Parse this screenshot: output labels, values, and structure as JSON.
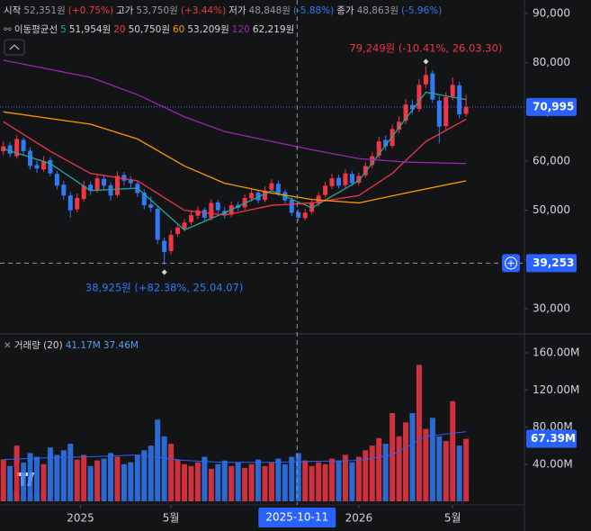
{
  "chart_data": {
    "type": "candlestick",
    "header": {
      "ohlc": [
        {
          "label": "시작",
          "value": "52,351원",
          "change": "(+0.75%)"
        },
        {
          "label": "고가",
          "value": "53,750원",
          "change": "(+3.44%)"
        },
        {
          "label": "저가",
          "value": "48,848원",
          "change": "(-5.88%)"
        },
        {
          "label": "종가",
          "value": "48,863원",
          "change": "(-5.96%)"
        }
      ],
      "ma_title": "이동평균선",
      "ma_items": [
        {
          "period": "5",
          "value": "51,954원",
          "color": "#26a69a"
        },
        {
          "period": "20",
          "value": "50,750원",
          "color": "#f23645"
        },
        {
          "period": "60",
          "value": "53,209원",
          "color": "#ff9800"
        },
        {
          "period": "120",
          "value": "62,219원",
          "color": "#9c27b0"
        }
      ],
      "volume_title": "거래량 (20)",
      "volume_values": [
        "41.17M",
        "37.46M"
      ]
    },
    "up_color": "#f23645",
    "down_color": "#3179f5",
    "open": [
      62000,
      63200,
      61000,
      64300,
      62100,
      59200,
      58300,
      60200,
      57400,
      55200,
      53000,
      50200,
      52300,
      55200,
      54100,
      56400,
      55100,
      53100,
      57200,
      56200,
      55400,
      53600,
      51200,
      50300,
      43800,
      41700,
      45200,
      46300,
      47600,
      48900,
      50100,
      48400,
      51600,
      49900,
      49100,
      51100,
      50600,
      52400,
      53600,
      52100,
      54200,
      55400,
      53700,
      52100,
      49600,
      48400,
      49700,
      51400,
      53100,
      54900,
      56600,
      55100,
      57400,
      55600,
      57100,
      59200,
      61100,
      64300,
      63100,
      66400,
      68200,
      71400,
      70600,
      75600,
      77800,
      72300,
      67100,
      73100,
      75400,
      69600
    ],
    "high": [
      64000,
      63900,
      65300,
      64800,
      62800,
      60100,
      61000,
      60800,
      58000,
      56000,
      53700,
      53400,
      56000,
      55900,
      57300,
      57100,
      55700,
      57900,
      57800,
      56900,
      56000,
      54300,
      52800,
      51000,
      44500,
      46000,
      47300,
      48300,
      49800,
      50800,
      50600,
      52300,
      52100,
      50600,
      51800,
      51800,
      53200,
      54300,
      54100,
      54900,
      56300,
      56000,
      54200,
      52700,
      50200,
      50300,
      52100,
      53700,
      55800,
      57400,
      57200,
      58300,
      58000,
      57700,
      59800,
      61900,
      64900,
      65200,
      67400,
      69100,
      72600,
      72400,
      76600,
      79249,
      78500,
      73200,
      74000,
      77000,
      76100,
      73500
    ],
    "low": [
      61200,
      60800,
      60500,
      61200,
      58300,
      57600,
      57800,
      56900,
      54200,
      52100,
      48500,
      49600,
      51800,
      53100,
      53600,
      54200,
      52000,
      52600,
      55100,
      54600,
      52700,
      50200,
      49600,
      43100,
      38925,
      41000,
      44600,
      45700,
      47000,
      48200,
      47800,
      47900,
      49300,
      48300,
      48600,
      49900,
      50100,
      51800,
      51400,
      51600,
      53700,
      52900,
      51400,
      48900,
      47800,
      47900,
      49200,
      50800,
      52600,
      54300,
      54400,
      54600,
      54900,
      55000,
      56600,
      58600,
      60500,
      62100,
      62600,
      65700,
      67500,
      69600,
      70000,
      74800,
      71800,
      63600,
      66400,
      72400,
      68600,
      69000
    ],
    "close": [
      63000,
      61500,
      64500,
      62000,
      59000,
      58500,
      60000,
      57500,
      55000,
      53000,
      50000,
      52500,
      55000,
      54000,
      56500,
      55000,
      53000,
      57000,
      56000,
      55500,
      53500,
      51000,
      50500,
      44000,
      41500,
      45000,
      46500,
      47500,
      49000,
      50000,
      48500,
      51500,
      50000,
      49000,
      51000,
      50500,
      52500,
      53500,
      52000,
      54000,
      55500,
      53500,
      52000,
      49500,
      48500,
      49500,
      51500,
      53000,
      55000,
      56500,
      55000,
      57500,
      55500,
      57000,
      59000,
      61000,
      64000,
      63000,
      66500,
      68000,
      71500,
      70500,
      75500,
      77500,
      72500,
      67000,
      73000,
      75500,
      69500,
      70995
    ],
    "volume": [
      45000000,
      38000000,
      60000000,
      42000000,
      52000000,
      48000000,
      40000000,
      58000000,
      50000000,
      55000000,
      62000000,
      45000000,
      50000000,
      38000000,
      44000000,
      46000000,
      52000000,
      48000000,
      40000000,
      42000000,
      50000000,
      55000000,
      60000000,
      88000000,
      70000000,
      62000000,
      45000000,
      40000000,
      38000000,
      42000000,
      48000000,
      35000000,
      40000000,
      44000000,
      38000000,
      42000000,
      36000000,
      40000000,
      45000000,
      38000000,
      42000000,
      46000000,
      40000000,
      48000000,
      52000000,
      44000000,
      38000000,
      42000000,
      40000000,
      46000000,
      44000000,
      50000000,
      42000000,
      48000000,
      55000000,
      60000000,
      68000000,
      62000000,
      95000000,
      70000000,
      85000000,
      95000000,
      147000000,
      78000000,
      90000000,
      70000000,
      65000000,
      108000000,
      60000000,
      67390000
    ],
    "ma": [
      {
        "color": "#26a69a",
        "x": [
          0,
          7,
          13,
          20,
          27,
          33,
          40,
          46,
          53,
          58,
          63,
          69
        ],
        "values": [
          62500,
          59500,
          54000,
          54500,
          46000,
          49500,
          54000,
          50500,
          56000,
          65000,
          74000,
          72500
        ]
      },
      {
        "color": "#f23645",
        "x": [
          0,
          7,
          13,
          20,
          27,
          33,
          40,
          46,
          53,
          58,
          63,
          69
        ],
        "values": [
          68000,
          62000,
          57500,
          56000,
          50000,
          49000,
          51000,
          51500,
          53000,
          57500,
          64000,
          68500
        ]
      },
      {
        "color": "#ff9800",
        "x": [
          0,
          13,
          20,
          27,
          33,
          40,
          46,
          53,
          60,
          69
        ],
        "values": [
          70000,
          67500,
          64500,
          59000,
          55500,
          53500,
          52200,
          51500,
          53500,
          56000
        ]
      },
      {
        "color": "#9c27b0",
        "x": [
          0,
          13,
          20,
          27,
          33,
          40,
          46,
          53,
          60,
          69
        ],
        "values": [
          80500,
          77000,
          73500,
          69000,
          66000,
          64000,
          62300,
          60500,
          59800,
          59500
        ]
      }
    ],
    "volume_ma": {
      "color": "#2962ff",
      "x": [
        0,
        7,
        13,
        20,
        27,
        33,
        40,
        46,
        53,
        58,
        63,
        69
      ],
      "values": [
        45000000,
        47000000,
        48000000,
        50000000,
        44000000,
        42000000,
        42000000,
        43000000,
        44000000,
        50000000,
        70000000,
        75000000
      ]
    },
    "ylim": [
      25060,
      92740
    ],
    "yticks": [
      {
        "value": 30000,
        "label": "30,000"
      },
      {
        "value": 40000,
        "label": "40,000"
      },
      {
        "value": 50000,
        "label": "50,000"
      },
      {
        "value": 60000,
        "label": "60,000"
      },
      {
        "value": 70000,
        "label": "70,000"
      },
      {
        "value": 80000,
        "label": "80,000"
      },
      {
        "value": 90000,
        "label": "90,000"
      }
    ],
    "y2lim": [
      0,
      179400000
    ],
    "y2ticks": [
      {
        "value": 40000000,
        "label": "40.00M"
      },
      {
        "value": 80000000,
        "label": "80.00M"
      },
      {
        "value": 120000000,
        "label": "120.00M"
      },
      {
        "value": 160000000,
        "label": "160.00M"
      }
    ],
    "xlim": [
      -0.5,
      77.7
    ],
    "xticks": [
      {
        "value": 11.5,
        "label": "2025"
      },
      {
        "value": 25,
        "label": "5월"
      },
      {
        "value": 53,
        "label": "2026"
      },
      {
        "value": 67,
        "label": "5월"
      }
    ],
    "crosshair": {
      "x": {
        "value": 43.8,
        "label": "2025-10-11"
      },
      "y": {
        "value": 39253,
        "label": "39,253"
      }
    },
    "last_price_label": "70,995",
    "last_volume_label": "67.39M",
    "annotations": [
      {
        "text": "79,249원 (-10.41%, 26.03.30)",
        "index": 63,
        "value": 79249,
        "color": "#f23645"
      },
      {
        "text": "38,925원 (+82.38%, 25.04.07)",
        "index": 24,
        "value": 38925,
        "color": "#3179f5"
      }
    ]
  }
}
